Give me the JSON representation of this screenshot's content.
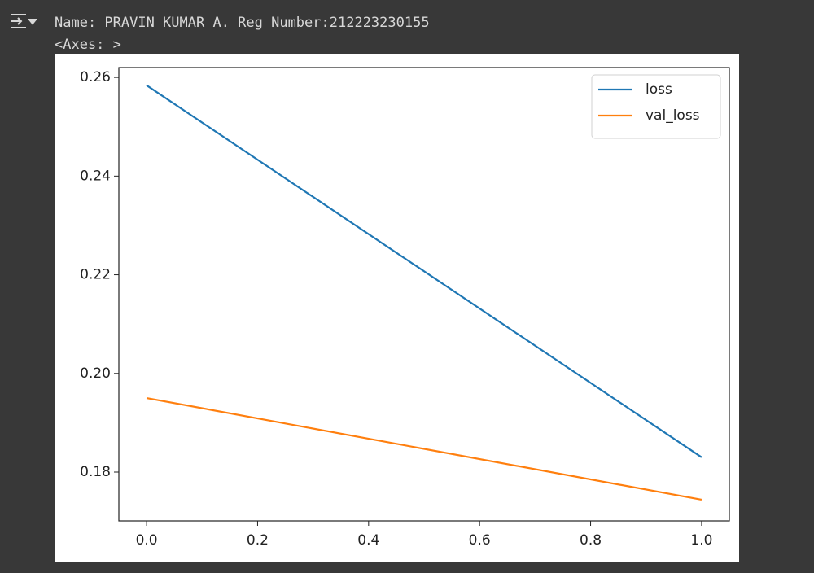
{
  "output": {
    "lines": [
      "Name: PRAVIN KUMAR A. Reg Number:212223230155",
      "<Axes: >"
    ]
  },
  "chart_data": {
    "type": "line",
    "x": [
      0,
      1
    ],
    "series": [
      {
        "name": "loss",
        "color": "#1f77b4",
        "values": [
          0.2584,
          0.183
        ]
      },
      {
        "name": "val_loss",
        "color": "#ff7f0e",
        "values": [
          0.195,
          0.1744
        ]
      }
    ],
    "xlim": [
      -0.05,
      1.05
    ],
    "xticks": [
      {
        "value": 0,
        "label": "0.0"
      },
      0.2,
      0.4,
      0.6,
      0.8,
      {
        "value": 1,
        "label": "1.0"
      }
    ],
    "ylim": [
      0.1701,
      0.262
    ],
    "yticks": [
      0.18,
      {
        "value": 0.2,
        "label": "0.20"
      },
      0.22,
      0.24,
      0.26
    ],
    "legend": "upper right"
  }
}
